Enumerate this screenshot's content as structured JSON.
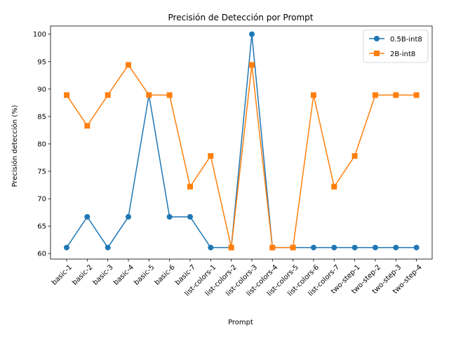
{
  "chart_data": {
    "type": "line",
    "title": "Precisión de Detección por Prompt",
    "xlabel": "Prompt",
    "ylabel": "Precisión detección (%)",
    "categories": [
      "basic-1",
      "basic-2",
      "basic-3",
      "basic-4",
      "basic-5",
      "basic-6",
      "basic-7",
      "list-colors-1",
      "list-colors-2",
      "list-colors-3",
      "list-colors-4",
      "list-colors-5",
      "list-colors-6",
      "list-colors-7",
      "two-step-1",
      "two-step-2",
      "two-step-3",
      "two-step-4"
    ],
    "ylim": [
      59.0,
      101.5
    ],
    "yticks": [
      60,
      65,
      70,
      75,
      80,
      85,
      90,
      95,
      100
    ],
    "grid": false,
    "legend_position": "top-right",
    "series": [
      {
        "name": "0.5B-int8",
        "color": "#1f77b4",
        "marker": "circle",
        "values": [
          61.1,
          66.7,
          61.1,
          66.7,
          88.9,
          66.7,
          66.7,
          61.1,
          61.1,
          100.0,
          61.1,
          61.1,
          61.1,
          61.1,
          61.1,
          61.1,
          61.1,
          61.1
        ]
      },
      {
        "name": "2B-int8",
        "color": "#ff7f0e",
        "marker": "square",
        "values": [
          88.9,
          83.3,
          88.9,
          94.4,
          88.9,
          88.9,
          72.2,
          77.8,
          61.1,
          94.4,
          61.1,
          61.1,
          88.9,
          72.2,
          77.8,
          88.9,
          88.9,
          88.9
        ]
      }
    ]
  }
}
